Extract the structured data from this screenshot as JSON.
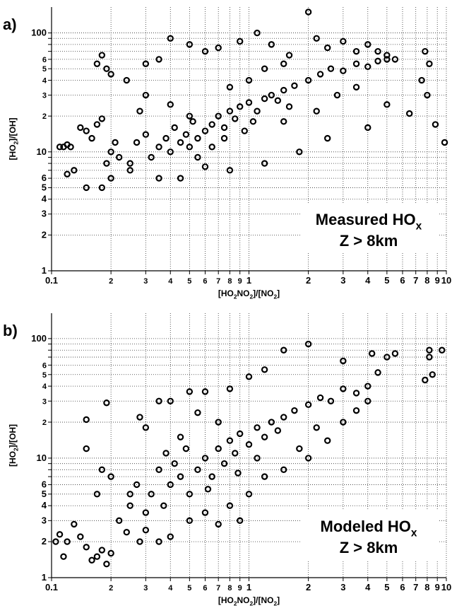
{
  "chart_data": [
    {
      "type": "scatter",
      "panel_label": "a)",
      "annotation": [
        "Measured HO",
        "x"
      ],
      "annotation_line2": "Z > 8km",
      "xlabel": [
        "[HO",
        "2",
        "NO",
        "2",
        "]/[NO",
        "2",
        "]"
      ],
      "ylabel": [
        "[HO",
        "2",
        "]/[OH]"
      ],
      "xlog": true,
      "ylog": true,
      "grid": true,
      "color": "#000000",
      "xlim": [
        0.1,
        10
      ],
      "ylim": [
        1,
        165
      ],
      "xticks": [
        0.1,
        {
          "value": 0.2,
          "label": "2"
        },
        {
          "value": 0.3,
          "label": "3"
        },
        {
          "value": 0.4,
          "label": "4"
        },
        {
          "value": 0.5,
          "label": "5"
        },
        {
          "value": 0.6,
          "label": "6"
        },
        {
          "value": 0.7,
          "label": "7"
        },
        {
          "value": 0.8,
          "label": "8"
        },
        {
          "value": 0.9,
          "label": "9"
        },
        1,
        2,
        3,
        4,
        5,
        6,
        7,
        8,
        9,
        10
      ],
      "yticks": [
        1,
        2,
        3,
        4,
        5,
        6,
        {
          "value": 7,
          "label": null
        },
        {
          "value": 8,
          "label": null
        },
        {
          "value": 9,
          "label": null
        },
        10,
        {
          "value": 20,
          "label": "2"
        },
        {
          "value": 30,
          "label": "3"
        },
        {
          "value": 40,
          "label": "4"
        },
        {
          "value": 50,
          "label": "5"
        },
        {
          "value": 60,
          "label": "6"
        },
        {
          "value": 70,
          "label": null
        },
        {
          "value": 80,
          "label": null
        },
        {
          "value": 90,
          "label": null
        },
        100
      ],
      "x": [
        0.11,
        0.115,
        0.12,
        0.125,
        0.12,
        0.14,
        0.15,
        0.16,
        0.17,
        0.18,
        0.19,
        0.2,
        0.21,
        0.22,
        0.18,
        0.2,
        0.25,
        0.27,
        0.3,
        0.32,
        0.35,
        0.38,
        0.4,
        0.42,
        0.45,
        0.48,
        0.5,
        0.52,
        0.55,
        0.6,
        0.65,
        0.7,
        0.75,
        0.8,
        0.85,
        0.9,
        1.0,
        1.1,
        1.2,
        1.3,
        1.4,
        1.5,
        1.7,
        2.0,
        2.3,
        2.6,
        3.0,
        3.5,
        4.0,
        4.5,
        5.0,
        5.5,
        0.19,
        0.18,
        0.17,
        0.2,
        0.24,
        0.3,
        0.35,
        0.4,
        0.5,
        0.6,
        0.7,
        0.9,
        1.1,
        1.3,
        1.6,
        2.0,
        2.2,
        2.5,
        3.0,
        3.5,
        4.0,
        4.5,
        5.0,
        7.8,
        8.2,
        7.5,
        8.0,
        8.8,
        9.8,
        6.5,
        5.0,
        4.0,
        2.5,
        1.8,
        1.2,
        0.8,
        0.6,
        0.45,
        0.35,
        0.25,
        0.15,
        0.13,
        0.55,
        0.65,
        0.75,
        1.5,
        2.2,
        3.5,
        2.8,
        0.5,
        0.4,
        0.3,
        0.28,
        1.0,
        0.8,
        1.2,
        1.5,
        0.95,
        1.05,
        1.6
      ],
      "y": [
        11,
        11,
        11.5,
        11,
        6.5,
        16,
        15,
        13,
        17,
        19,
        8,
        10,
        12,
        9,
        5,
        6,
        8,
        12,
        14,
        9,
        11,
        13,
        10,
        16,
        12,
        14,
        11,
        18,
        13,
        15,
        17,
        20,
        16,
        22,
        19,
        24,
        26,
        22,
        28,
        30,
        27,
        33,
        36,
        40,
        45,
        50,
        48,
        55,
        52,
        58,
        60,
        60,
        50,
        65,
        55,
        45,
        40,
        55,
        60,
        90,
        80,
        70,
        75,
        85,
        100,
        80,
        65,
        150,
        90,
        75,
        85,
        70,
        80,
        70,
        65,
        70,
        55,
        40,
        30,
        17,
        12,
        21,
        25,
        16,
        13,
        10,
        8,
        7,
        7.5,
        6,
        6,
        7,
        5,
        7,
        9,
        11,
        13,
        18,
        22,
        35,
        30,
        20,
        25,
        30,
        22,
        40,
        35,
        50,
        55,
        15,
        18,
        24
      ]
    },
    {
      "type": "scatter",
      "panel_label": "b)",
      "annotation": [
        "Modeled HO",
        "x"
      ],
      "annotation_line2": "Z > 8km",
      "xlabel": [
        "[HO",
        "2",
        "NO",
        "2",
        "]/[NO",
        "2",
        "]"
      ],
      "ylabel": [
        "[HO",
        "2",
        "]/[OH]"
      ],
      "xlog": true,
      "ylog": true,
      "grid": true,
      "color": "#000000",
      "xlim": [
        0.1,
        10
      ],
      "ylim": [
        1,
        163
      ],
      "xticks": [
        0.1,
        {
          "value": 0.2,
          "label": "2"
        },
        {
          "value": 0.3,
          "label": "3"
        },
        {
          "value": 0.4,
          "label": "4"
        },
        {
          "value": 0.5,
          "label": "5"
        },
        {
          "value": 0.6,
          "label": "6"
        },
        {
          "value": 0.7,
          "label": "7"
        },
        {
          "value": 0.8,
          "label": "8"
        },
        {
          "value": 0.9,
          "label": "9"
        },
        1,
        2,
        3,
        4,
        5,
        6,
        7,
        8,
        9,
        10
      ],
      "yticks": [
        1,
        2,
        3,
        4,
        5,
        6,
        {
          "value": 7,
          "label": null
        },
        {
          "value": 8,
          "label": null
        },
        {
          "value": 9,
          "label": null
        },
        10,
        {
          "value": 20,
          "label": "2"
        },
        {
          "value": 30,
          "label": "3"
        },
        {
          "value": 40,
          "label": "4"
        },
        {
          "value": 50,
          "label": "5"
        },
        {
          "value": 60,
          "label": "6"
        },
        {
          "value": 70,
          "label": null
        },
        {
          "value": 80,
          "label": null
        },
        {
          "value": 90,
          "label": null
        },
        100
      ],
      "x": [
        0.105,
        0.11,
        0.115,
        0.12,
        0.13,
        0.14,
        0.15,
        0.16,
        0.17,
        0.18,
        0.19,
        0.2,
        0.15,
        0.15,
        0.19,
        0.18,
        0.17,
        0.2,
        0.22,
        0.24,
        0.25,
        0.27,
        0.28,
        0.3,
        0.32,
        0.35,
        0.37,
        0.4,
        0.42,
        0.45,
        0.48,
        0.5,
        0.55,
        0.6,
        0.65,
        0.7,
        0.75,
        0.8,
        0.85,
        0.9,
        1.0,
        1.1,
        1.2,
        1.3,
        1.4,
        1.5,
        1.7,
        2.0,
        2.3,
        2.6,
        3.0,
        3.5,
        4.0,
        4.5,
        5.0,
        5.5,
        4.2,
        3.0,
        2.0,
        1.5,
        1.2,
        1.0,
        0.8,
        0.6,
        0.5,
        0.4,
        0.35,
        0.3,
        0.28,
        0.25,
        0.3,
        0.35,
        0.4,
        0.5,
        0.6,
        0.7,
        0.8,
        1.0,
        1.2,
        1.5,
        2.0,
        2.5,
        3.0,
        3.5,
        4.0,
        7.8,
        8.2,
        8.2,
        8.5,
        9.5,
        0.9,
        1.1,
        0.7,
        0.55,
        0.45,
        2.2,
        1.8,
        0.38,
        0.62,
        0.88
      ],
      "y": [
        2,
        2.3,
        1.5,
        2,
        2.8,
        2.2,
        1.8,
        1.4,
        1.5,
        1.7,
        1.3,
        1.6,
        12,
        21,
        29,
        8,
        5,
        7,
        3,
        2.4,
        4,
        6,
        2,
        3.5,
        5,
        8,
        4,
        6,
        9,
        7,
        12,
        5,
        8,
        10,
        7,
        12,
        9,
        14,
        11,
        16,
        13,
        18,
        15,
        20,
        17,
        22,
        25,
        28,
        32,
        30,
        38,
        35,
        40,
        52,
        70,
        75,
        75,
        65,
        90,
        80,
        55,
        48,
        38,
        36,
        36,
        30,
        30,
        18,
        22,
        5,
        2.5,
        2,
        2.2,
        3,
        3.5,
        2.8,
        4,
        5,
        7,
        8,
        10,
        14,
        20,
        25,
        30,
        45,
        80,
        70,
        50,
        80,
        3,
        10,
        20,
        24,
        15,
        18,
        12,
        11,
        5.5,
        7.5
      ]
    }
  ]
}
